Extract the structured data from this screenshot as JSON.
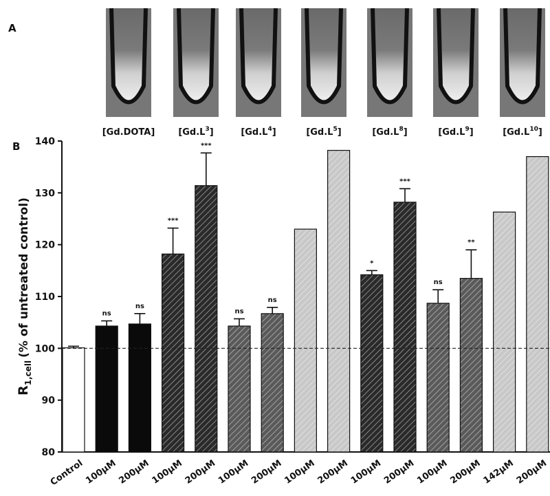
{
  "panel_a": {
    "letter": "A",
    "labels": [
      {
        "prefix": "[Gd.DOTA]"
      },
      {
        "prefix": "[Gd.L",
        "sup": "3",
        "suffix": "]"
      },
      {
        "prefix": "[Gd.L",
        "sup": "4",
        "suffix": "]"
      },
      {
        "prefix": "[Gd.L",
        "sup": "5",
        "suffix": "]"
      },
      {
        "prefix": "[Gd.L",
        "sup": "8",
        "suffix": "]"
      },
      {
        "prefix": "[Gd.L",
        "sup": "9",
        "suffix": "]"
      },
      {
        "prefix": "[Gd.L",
        "sup": "10",
        "suffix": "]"
      }
    ]
  },
  "chart_data": {
    "type": "bar",
    "letter": "B",
    "ylabel": {
      "main": "R",
      "sub": "1,cell",
      "rest": "(% of untreated control)"
    },
    "categories": [
      "Control",
      "100µM",
      "200µM",
      "100µM",
      "200µM",
      "100µM",
      "200µM",
      "100µM",
      "200µM",
      "100µM",
      "200µM",
      "100µM",
      "200µM",
      "142µM",
      "200µM"
    ],
    "values": [
      100.1,
      104.3,
      104.7,
      118.2,
      131.4,
      104.3,
      106.7,
      123,
      138.2,
      114.2,
      128.2,
      108.7,
      113.5,
      126.3,
      137
    ],
    "errors": [
      0.3,
      1,
      2,
      5,
      6.3,
      1.4,
      1.2,
      null,
      null,
      0.8,
      2.6,
      2.6,
      5.5,
      null,
      null
    ],
    "significance": [
      null,
      "ns",
      "ns",
      "***",
      "***",
      "ns",
      "ns",
      null,
      null,
      "*",
      "***",
      "ns",
      "**",
      null,
      null
    ],
    "colors": [
      "#ffffff",
      "#0a0a0a",
      "#0a0a0a",
      "#2a2a2a",
      "#2a2a2a",
      "#5a5a5a",
      "#5a5a5a",
      "#c8c8c8",
      "#c8c8c8",
      "#2a2a2a",
      "#2a2a2a",
      "#5a5a5a",
      "#5a5a5a",
      "#c8c8c8",
      "#c8c8c8"
    ],
    "hatch": [
      false,
      false,
      false,
      true,
      true,
      true,
      true,
      true,
      true,
      true,
      true,
      true,
      true,
      true,
      true
    ],
    "reference_line": 100,
    "ylim": [
      80,
      140
    ],
    "yticks": [
      80,
      90,
      100,
      110,
      120,
      130,
      140
    ]
  }
}
